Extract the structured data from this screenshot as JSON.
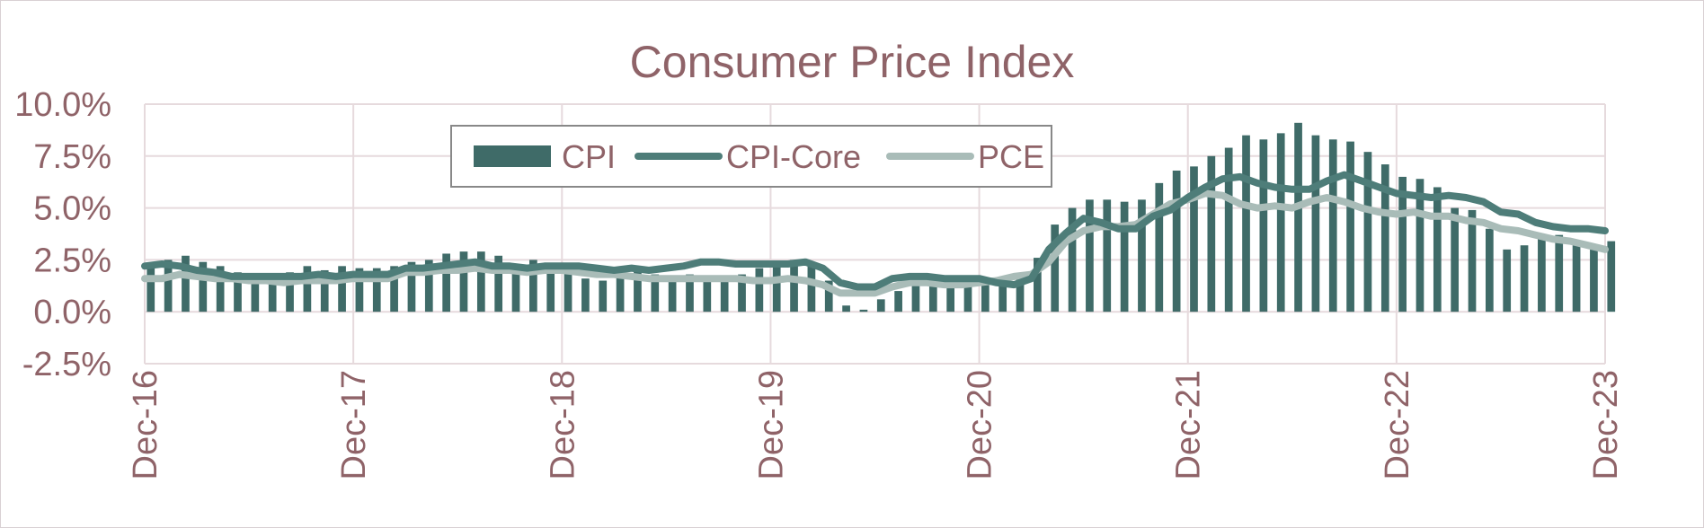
{
  "chart_data": {
    "type": "bar",
    "title": "Consumer Price Index",
    "xlabel": "",
    "ylabel": "",
    "ylim": [
      -2.5,
      10.0
    ],
    "yticks": [
      "10.0%",
      "7.5%",
      "5.0%",
      "2.5%",
      "0.0%",
      "-2.5%"
    ],
    "ytick_values": [
      10.0,
      7.5,
      5.0,
      2.5,
      0.0,
      -2.5
    ],
    "xtick_labels": [
      "Dec-16",
      "Dec-17",
      "Dec-18",
      "Dec-19",
      "Dec-20",
      "Dec-21",
      "Dec-22",
      "Dec-23"
    ],
    "grid": true,
    "legend_position": "top-center",
    "colors": {
      "cpi": "#3f6b68",
      "cpi_core": "#4e7d79",
      "pce": "#a9bcb8",
      "text": "#8f6368",
      "grid": "#e6dadd"
    },
    "x": [
      "Dec-16",
      "Jan-17",
      "Feb-17",
      "Mar-17",
      "Apr-17",
      "May-17",
      "Jun-17",
      "Jul-17",
      "Aug-17",
      "Sep-17",
      "Oct-17",
      "Nov-17",
      "Dec-17",
      "Jan-18",
      "Feb-18",
      "Mar-18",
      "Apr-18",
      "May-18",
      "Jun-18",
      "Jul-18",
      "Aug-18",
      "Sep-18",
      "Oct-18",
      "Nov-18",
      "Dec-18",
      "Jan-19",
      "Feb-19",
      "Mar-19",
      "Apr-19",
      "May-19",
      "Jun-19",
      "Jul-19",
      "Aug-19",
      "Sep-19",
      "Oct-19",
      "Nov-19",
      "Dec-19",
      "Jan-20",
      "Feb-20",
      "Mar-20",
      "Apr-20",
      "May-20",
      "Jun-20",
      "Jul-20",
      "Aug-20",
      "Sep-20",
      "Oct-20",
      "Nov-20",
      "Dec-20",
      "Jan-21",
      "Feb-21",
      "Mar-21",
      "Apr-21",
      "May-21",
      "Jun-21",
      "Jul-21",
      "Aug-21",
      "Sep-21",
      "Oct-21",
      "Nov-21",
      "Dec-21",
      "Jan-22",
      "Feb-22",
      "Mar-22",
      "Apr-22",
      "May-22",
      "Jun-22",
      "Jul-22",
      "Aug-22",
      "Sep-22",
      "Oct-22",
      "Nov-22",
      "Dec-22",
      "Jan-23",
      "Feb-23",
      "Mar-23",
      "Apr-23",
      "May-23",
      "Jun-23",
      "Jul-23",
      "Aug-23",
      "Sep-23",
      "Oct-23",
      "Nov-23",
      "Dec-23"
    ],
    "series": [
      {
        "name": "CPI",
        "kind": "bar",
        "values": [
          2.1,
          2.5,
          2.7,
          2.4,
          2.2,
          1.9,
          1.6,
          1.7,
          1.9,
          2.2,
          2.0,
          2.2,
          2.1,
          2.1,
          2.2,
          2.4,
          2.5,
          2.8,
          2.9,
          2.9,
          2.7,
          2.3,
          2.5,
          2.2,
          1.9,
          1.6,
          1.5,
          1.9,
          2.0,
          1.8,
          1.6,
          1.8,
          1.7,
          1.7,
          1.8,
          2.1,
          2.3,
          2.5,
          2.3,
          1.5,
          0.3,
          0.1,
          0.6,
          1.0,
          1.3,
          1.4,
          1.2,
          1.2,
          1.4,
          1.4,
          1.7,
          2.6,
          4.2,
          5.0,
          5.4,
          5.4,
          5.3,
          5.4,
          6.2,
          6.8,
          7.0,
          7.5,
          7.9,
          8.5,
          8.3,
          8.6,
          9.1,
          8.5,
          8.3,
          8.2,
          7.7,
          7.1,
          6.5,
          6.4,
          6.0,
          5.0,
          4.9,
          4.0,
          3.0,
          3.2,
          3.7,
          3.7,
          3.2,
          3.1,
          3.4
        ]
      },
      {
        "name": "CPI-Core",
        "kind": "line",
        "values": [
          2.2,
          2.3,
          2.2,
          2.0,
          1.9,
          1.7,
          1.7,
          1.7,
          1.7,
          1.7,
          1.8,
          1.7,
          1.8,
          1.8,
          1.8,
          2.1,
          2.1,
          2.2,
          2.3,
          2.4,
          2.2,
          2.2,
          2.1,
          2.2,
          2.2,
          2.2,
          2.1,
          2.0,
          2.1,
          2.0,
          2.1,
          2.2,
          2.4,
          2.4,
          2.3,
          2.3,
          2.3,
          2.3,
          2.4,
          2.1,
          1.4,
          1.2,
          1.2,
          1.6,
          1.7,
          1.7,
          1.6,
          1.6,
          1.6,
          1.4,
          1.3,
          1.6,
          3.0,
          3.8,
          4.5,
          4.3,
          4.0,
          4.0,
          4.6,
          4.9,
          5.5,
          6.0,
          6.4,
          6.5,
          6.2,
          6.0,
          5.9,
          5.9,
          6.3,
          6.6,
          6.3,
          6.0,
          5.7,
          5.6,
          5.5,
          5.6,
          5.5,
          5.3,
          4.8,
          4.7,
          4.3,
          4.1,
          4.0,
          4.0,
          3.9
        ]
      },
      {
        "name": "PCE",
        "kind": "line",
        "values": [
          1.6,
          1.6,
          1.8,
          1.7,
          1.6,
          1.6,
          1.5,
          1.5,
          1.4,
          1.5,
          1.5,
          1.5,
          1.6,
          1.6,
          1.6,
          1.9,
          1.9,
          2.0,
          2.0,
          2.1,
          2.0,
          2.0,
          1.9,
          2.0,
          2.0,
          1.9,
          1.8,
          1.8,
          1.7,
          1.6,
          1.6,
          1.6,
          1.6,
          1.6,
          1.6,
          1.5,
          1.5,
          1.6,
          1.5,
          1.3,
          0.9,
          0.9,
          0.9,
          1.2,
          1.4,
          1.4,
          1.3,
          1.3,
          1.4,
          1.5,
          1.7,
          1.8,
          2.4,
          3.4,
          3.9,
          4.1,
          4.1,
          4.2,
          4.7,
          5.2,
          5.4,
          5.7,
          5.6,
          5.2,
          5.0,
          5.1,
          5.0,
          5.3,
          5.5,
          5.3,
          5.0,
          4.8,
          4.7,
          4.8,
          4.6,
          4.6,
          4.4,
          4.3,
          4.0,
          3.9,
          3.7,
          3.5,
          3.4,
          3.2,
          3.0
        ]
      }
    ],
    "legend": [
      {
        "name": "CPI",
        "swatch": "bar"
      },
      {
        "name": "CPI-Core",
        "swatch": "line"
      },
      {
        "name": "PCE",
        "swatch": "line"
      }
    ]
  }
}
